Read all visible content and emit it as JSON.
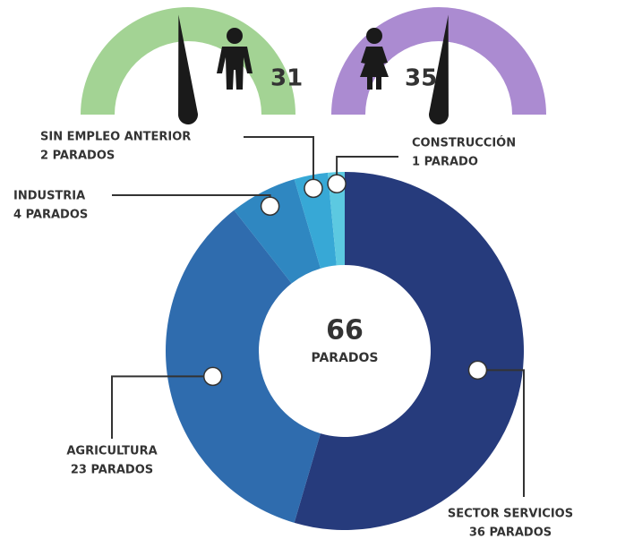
{
  "chart_data": {
    "type": "donut",
    "categories": [
      "SECTOR SERVICIOS",
      "AGRICULTURA",
      "INDUSTRIA",
      "SIN EMPLEO ANTERIOR",
      "CONSTRUCCIÓN"
    ],
    "values": [
      36,
      23,
      4,
      2,
      1
    ],
    "value_labels": [
      "36 PARADOS",
      "23 PARADOS",
      "4 PARADOS",
      "2 PARADOS",
      "1 PARADO"
    ],
    "colors": [
      "#263b7c",
      "#2f6cae",
      "#2f87c1",
      "#37a8d6",
      "#5cc9e1"
    ],
    "center_value": 66,
    "center_label": "PARADOS",
    "gauges": [
      {
        "icon": "male",
        "value": 31,
        "color": "#a3d394"
      },
      {
        "icon": "female",
        "value": 35,
        "color": "#ab8bd1"
      }
    ]
  }
}
